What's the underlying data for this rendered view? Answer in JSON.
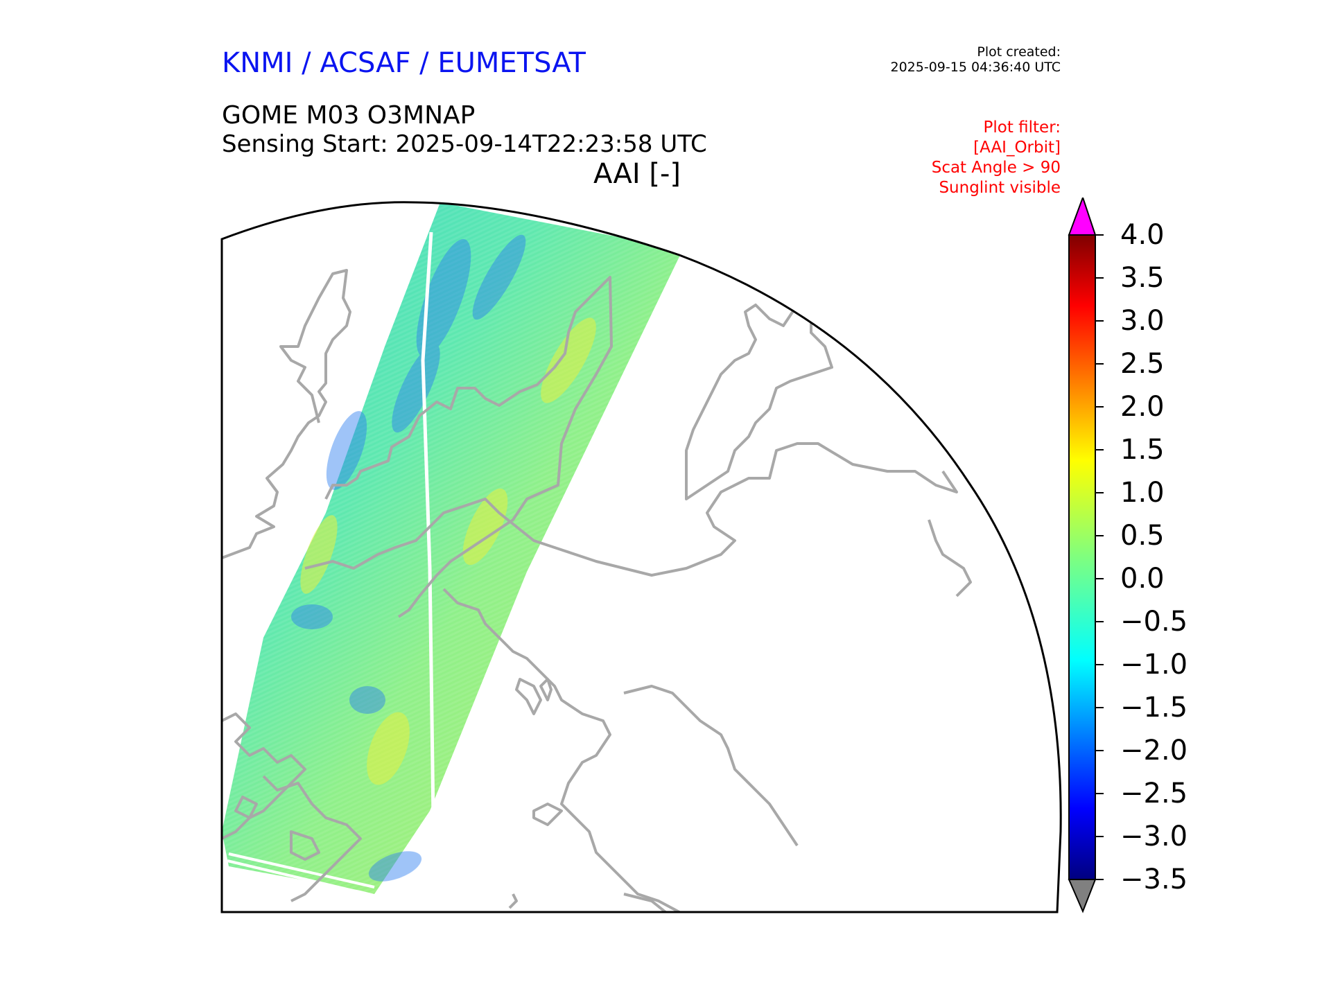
{
  "header": {
    "org_title": "KNMI / ACSAF / EUMETSAT",
    "plot_created_label": "Plot created:",
    "plot_created_time": "2025-09-15 04:36:40 UTC",
    "product": "GOME M03 O3MNAP",
    "sensing_start": "Sensing Start: 2025-09-14T22:23:58 UTC",
    "variable_title": "AAI [-]"
  },
  "filter": {
    "line1": "Plot filter:",
    "line2": "[AAI_Orbit]",
    "line3": "Scat Angle > 90",
    "line4": "Sunglint visible"
  },
  "colorbar": {
    "ticks": [
      "4.0",
      "3.5",
      "3.0",
      "2.5",
      "2.0",
      "1.5",
      "1.0",
      "0.5",
      "0.0",
      "−0.5",
      "−1.0",
      "−1.5",
      "−2.0",
      "−2.5",
      "−3.0",
      "−3.5"
    ],
    "over_color": "#ff00ff",
    "under_color": "#808080",
    "colormap": "jet"
  },
  "colors": {
    "coastline": "#a8a8a8",
    "swath_base": "#6cf0a0",
    "title_blue": "#0a14f0",
    "filter_red": "#ff0000"
  }
}
